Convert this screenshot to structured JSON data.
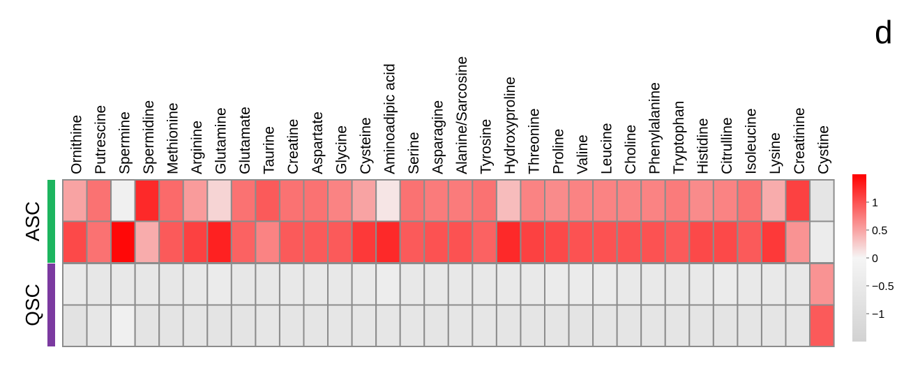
{
  "panel_label": "d",
  "chart_data": {
    "type": "heatmap",
    "columns": [
      "Ornithine",
      "Putrescine",
      "Spermine",
      "Spermidine",
      "Methionine",
      "Arginine",
      "Glutamine",
      "Glutamate",
      "Taurine",
      "Creatine",
      "Aspartate",
      "Glycine",
      "Cysteine",
      "Aminoadipic acid",
      "Serine",
      "Asparagine",
      "Alanine/Sarcosine",
      "Tyrosine",
      "Hydroxyproline",
      "Threonine",
      "Proline",
      "Valine",
      "Leucine",
      "Choline",
      "Phenylalanine",
      "Tryptophan",
      "Histidine",
      "Citrulline",
      "Isoleucine",
      "Lysine",
      "Creatinine",
      "Cystine"
    ],
    "groups": [
      {
        "name": "ASC",
        "color": "#1db55f",
        "rows": [
          0,
          1
        ]
      },
      {
        "name": "QSC",
        "color": "#7b3aa0",
        "rows": [
          2,
          3
        ]
      }
    ],
    "values": [
      [
        0.5,
        0.8,
        -0.2,
        1.25,
        0.85,
        0.55,
        0.2,
        0.8,
        0.95,
        0.8,
        0.8,
        0.7,
        0.5,
        0.1,
        0.8,
        0.75,
        0.75,
        0.8,
        0.35,
        0.7,
        0.65,
        0.7,
        0.7,
        0.7,
        0.7,
        0.75,
        0.65,
        0.7,
        0.8,
        0.45,
        1.1,
        -0.7
      ],
      [
        1.05,
        0.8,
        1.45,
        0.45,
        0.95,
        1.1,
        1.3,
        0.9,
        0.7,
        0.95,
        0.95,
        0.95,
        1.15,
        1.25,
        0.95,
        1.0,
        1.0,
        0.9,
        1.25,
        1.1,
        1.05,
        1.0,
        1.0,
        1.0,
        1.0,
        0.95,
        1.05,
        1.05,
        0.95,
        1.15,
        0.6,
        -0.4
      ],
      [
        -0.5,
        -0.6,
        -0.55,
        -0.6,
        -0.6,
        -0.55,
        -0.45,
        -0.6,
        -0.6,
        -0.55,
        -0.55,
        -0.55,
        -0.5,
        -0.35,
        -0.55,
        -0.55,
        -0.55,
        -0.55,
        -0.5,
        -0.5,
        -0.45,
        -0.45,
        -0.45,
        -0.5,
        -0.5,
        -0.55,
        -0.5,
        -0.45,
        -0.5,
        -0.5,
        -0.55,
        0.6
      ],
      [
        -0.8,
        -0.6,
        -0.2,
        -0.75,
        -0.75,
        -0.7,
        -0.75,
        -0.75,
        -0.65,
        -0.7,
        -0.7,
        -0.65,
        -0.65,
        -0.65,
        -0.65,
        -0.7,
        -0.65,
        -0.65,
        -0.7,
        -0.7,
        -0.7,
        -0.75,
        -0.7,
        -0.7,
        -0.7,
        -0.7,
        -0.7,
        -0.75,
        -0.7,
        -0.7,
        -0.65,
        0.95
      ]
    ],
    "color_scale": {
      "min": -1.5,
      "max": 1.5,
      "low_color": "#d2d2d2",
      "mid_color": "#f5f5f5",
      "high_color": "#ff0000"
    },
    "legend": {
      "position": "right",
      "ticks": [
        1,
        0.5,
        0,
        -0.5,
        -1
      ],
      "tick_labels": [
        "1",
        "0.5",
        "0",
        "−0.5",
        "−1"
      ]
    },
    "grid_color": "#8c8c8c"
  }
}
